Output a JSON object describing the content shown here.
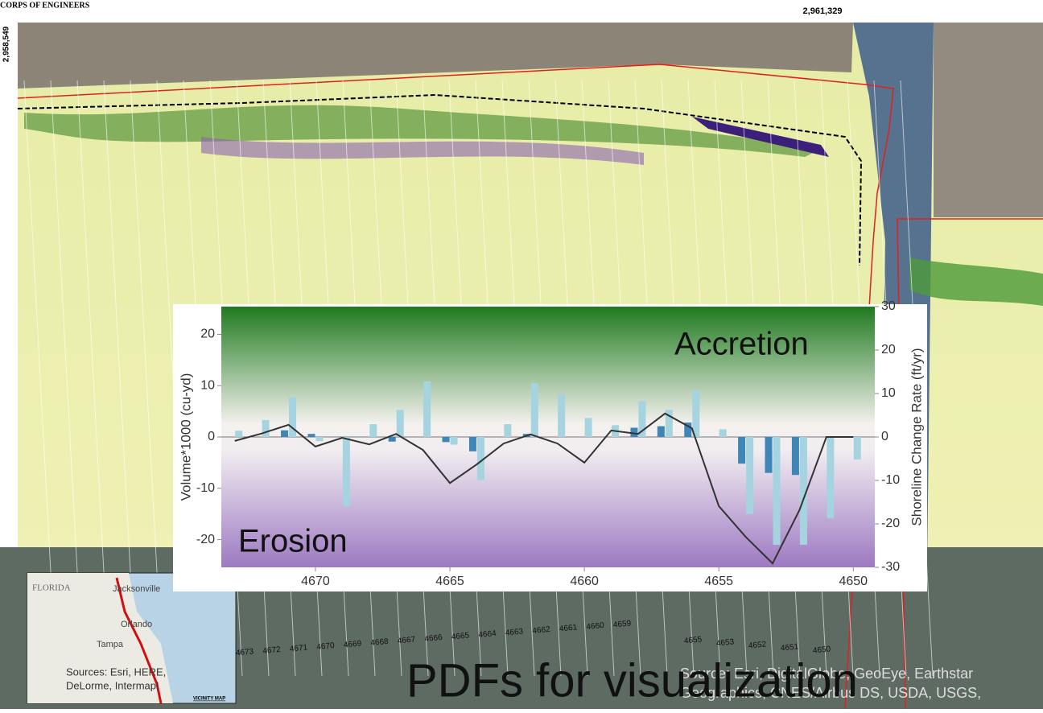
{
  "map": {
    "header": "CORPS OF ENGINEERS",
    "northing": "2,958,549",
    "easting": "2,961,329",
    "transect_labels": [
      "4673",
      "4672",
      "4671",
      "4670",
      "4669",
      "4668",
      "4667",
      "4666",
      "4665",
      "4664",
      "4663",
      "4662",
      "4661",
      "4660",
      "4659",
      "4655",
      "4653",
      "4652",
      "4651",
      "4650"
    ],
    "inset": {
      "state": "FLORIDA",
      "cities": [
        "Jacksonville",
        "Orlando",
        "Tampa"
      ],
      "sources": "Sources: Esri, HERE,",
      "sources_2": "DeLorme, Intermap!",
      "title": "VICINITY MAP"
    },
    "imagery_credit": "Source: Esri, DigitalGlobe, GeoEye, Earthstar",
    "imagery_credit_2": "Geographics, CNES/Airbus DS, USDA, USGS,",
    "caption": "PDFs for visualization"
  },
  "chart_data": {
    "type": "bar",
    "ylabel": "Volume*1000 (cu-yd)",
    "y2label": "Shoreline Change Rate (ft/yr)",
    "annotations": [
      "Accretion",
      "Erosion"
    ],
    "x": [
      4673,
      4672,
      4671,
      4670,
      4669,
      4668,
      4667,
      4666,
      4665,
      4664,
      4663,
      4662,
      4661,
      4660,
      4659,
      4658,
      4657,
      4656,
      4655,
      4654,
      4653,
      4652,
      4651,
      4650
    ],
    "series": [
      {
        "color": "#3f86b8",
        "values": [
          0,
          0,
          1.3,
          0.6,
          0,
          0,
          -0.9,
          0,
          -1,
          -2.8,
          0,
          0.6,
          0,
          0,
          0,
          1.8,
          2.1,
          2.8,
          0,
          -5.2,
          -7,
          -7.4,
          0,
          0
        ]
      },
      {
        "color": "#a6d3e0",
        "values": [
          1.2,
          3.3,
          7.8,
          -0.8,
          -13.5,
          2.5,
          5.3,
          10.8,
          -1.5,
          -8.4,
          2.5,
          10.5,
          8.4,
          3.7,
          2.3,
          7,
          5.3,
          9.2,
          1.5,
          -15,
          -21,
          -21,
          -15.8,
          -4.4
        ]
      },
      {
        "type": "line",
        "axis": "y2",
        "color": "#333333",
        "values": [
          -0.9,
          0.8,
          2.8,
          -2.2,
          -0.2,
          -1.7,
          0.7,
          -3,
          -10.6,
          -6.3,
          -1.5,
          0.6,
          -1.5,
          -5.9,
          1.5,
          0.7,
          5.4,
          2,
          -15.9,
          -23,
          -29.1,
          -16.8,
          0,
          0
        ]
      }
    ],
    "xlim": [
      4673.5,
      4649.2
    ],
    "xticks": [
      4670,
      4665,
      4660,
      4655,
      4650
    ],
    "ylim": [
      -25.4,
      25.4
    ],
    "yticks": [
      -20,
      -10,
      0,
      10,
      20
    ],
    "y2lim": [
      -30,
      30
    ],
    "y2ticks": [
      -30,
      -20,
      -10,
      0,
      10,
      20,
      30
    ]
  }
}
